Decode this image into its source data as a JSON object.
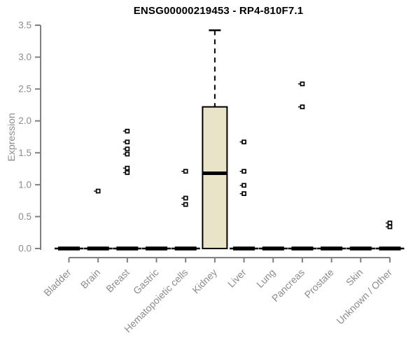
{
  "chart_data": {
    "type": "boxplot",
    "title": "ENSG00000219453 - RP4-810F7.1",
    "ylabel": "Expression",
    "ylim": [
      0,
      3.5
    ],
    "yticks": [
      0.0,
      0.5,
      1.0,
      1.5,
      2.0,
      2.5,
      3.0,
      3.5
    ],
    "grid": false,
    "legend": false,
    "categories": [
      "Bladder",
      "Brain",
      "Breast",
      "Gastric",
      "Hematopoietic cells",
      "Kidney",
      "Liver",
      "Lung",
      "Pancreas",
      "Prostate",
      "Skin",
      "Unknown / Other"
    ],
    "series": [
      {
        "category": "Bladder",
        "q1": 0,
        "median": 0,
        "q3": 0,
        "whisker_low": 0,
        "whisker_high": 0,
        "outliers": []
      },
      {
        "category": "Brain",
        "q1": 0,
        "median": 0,
        "q3": 0,
        "whisker_low": 0,
        "whisker_high": 0,
        "outliers": [
          0.9
        ]
      },
      {
        "category": "Breast",
        "q1": 0,
        "median": 0,
        "q3": 0,
        "whisker_low": 0,
        "whisker_high": 0,
        "outliers": [
          1.84,
          1.67,
          1.56,
          1.48,
          1.26,
          1.19
        ]
      },
      {
        "category": "Gastric",
        "q1": 0,
        "median": 0,
        "q3": 0,
        "whisker_low": 0,
        "whisker_high": 0,
        "outliers": []
      },
      {
        "category": "Hematopoietic cells",
        "q1": 0,
        "median": 0,
        "q3": 0,
        "whisker_low": 0,
        "whisker_high": 0,
        "outliers": [
          1.21,
          0.79,
          0.69
        ]
      },
      {
        "category": "Kidney",
        "q1": 0,
        "median": 1.18,
        "q3": 2.22,
        "whisker_low": 0,
        "whisker_high": 3.42,
        "outliers": []
      },
      {
        "category": "Liver",
        "q1": 0,
        "median": 0,
        "q3": 0,
        "whisker_low": 0,
        "whisker_high": 0,
        "outliers": [
          1.67,
          1.21,
          0.99,
          0.86
        ]
      },
      {
        "category": "Lung",
        "q1": 0,
        "median": 0,
        "q3": 0,
        "whisker_low": 0,
        "whisker_high": 0,
        "outliers": []
      },
      {
        "category": "Pancreas",
        "q1": 0,
        "median": 0,
        "q3": 0,
        "whisker_low": 0,
        "whisker_high": 0,
        "outliers": [
          2.58,
          2.22
        ]
      },
      {
        "category": "Prostate",
        "q1": 0,
        "median": 0,
        "q3": 0,
        "whisker_low": 0,
        "whisker_high": 0,
        "outliers": []
      },
      {
        "category": "Skin",
        "q1": 0,
        "median": 0,
        "q3": 0,
        "whisker_low": 0,
        "whisker_high": 0,
        "outliers": []
      },
      {
        "category": "Unknown / Other",
        "q1": 0,
        "median": 0,
        "q3": 0,
        "whisker_low": 0,
        "whisker_high": 0,
        "outliers": [
          0.4,
          0.34
        ]
      }
    ],
    "colors": {
      "box_fill": "#e9e3c8",
      "box_stroke": "#000000",
      "median": "#000000",
      "outlier": "#000000",
      "axis": "#808080",
      "tick_label": "#8c8c8c",
      "title": "#000000",
      "background": "#ffffff"
    }
  }
}
